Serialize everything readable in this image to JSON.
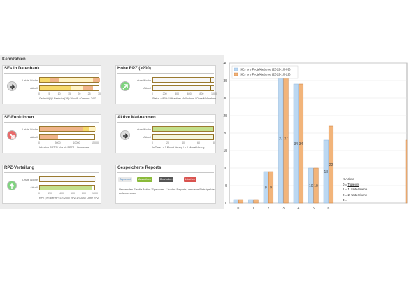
{
  "dashboard": {
    "title": "Kennzahlen",
    "row_labels": {
      "last_week": "Letzte Woche",
      "current": "Aktuell"
    },
    "panels": {
      "ses": {
        "title": "SEs in Datenbank",
        "ticks": [
          "0",
          "5",
          "10",
          "15",
          "20",
          "25",
          "30"
        ],
        "caption": "Gedacht(0) / Realisiert(18) / Neu(8) / Gesamt: 2423"
      },
      "hohe": {
        "title": "Hohe RPZ (>200)",
        "ticks": [
          "0",
          "200",
          "400",
          "600",
          "800",
          "1000"
        ],
        "caption": "Status = 80% / Mit aktiver Maßnahme / Ohne Maßnahme"
      },
      "sef": {
        "title": "SE-Funktionen",
        "ticks": [
          "0",
          "5000",
          "10000",
          "15000"
        ],
        "caption": "Inklusive RPZ 2 / Nur bis RPZ 1 / Unbewertet"
      },
      "aktive": {
        "title": "Aktive Maßnahmen",
        "ticks": [
          "0",
          "20",
          "40",
          "60",
          "80"
        ],
        "caption": "In Time / < 1 Monat Verzug / > 1 Monat Verzug"
      },
      "rpz": {
        "title": "RPZ-Verteilung",
        "ticks": [
          "0",
          "200",
          "400",
          "600",
          "800",
          "1000"
        ],
        "caption": "RPZ (>0 oder RPZ1 < 200 / RPZ 1 < 200 / Ohne RPZ"
      },
      "saved": {
        "title": "Gespeicherte Reports",
        "tags": [
          {
            "label": "Top report",
            "color": "#e8e8e8",
            "text_color": "#3a7fc2"
          },
          {
            "label": "Auswählen",
            "color": "#8aba3a",
            "text_color": "#ffffff"
          },
          {
            "label": "Bearbeiten",
            "color": "#555555",
            "text_color": "#ffffff"
          },
          {
            "label": "Löschen",
            "color": "#d9534f",
            "text_color": "#ffffff"
          }
        ],
        "text": "Verwenden Sie die Aktion 'Speichern...' in den Reports, um neue Einträge hier aufzunehmen."
      }
    }
  },
  "chart_data": {
    "type": "bar",
    "categories": [
      "0",
      "1",
      "2",
      "3",
      "4",
      "5",
      "6"
    ],
    "series": [
      {
        "name": "SEs pro Projektebene (2012-10-09)",
        "color": "#bcd8f2",
        "values": [
          1,
          1,
          9,
          37,
          34,
          10,
          18
        ]
      },
      {
        "name": "SEs pro Projektebene (2012-10-22)",
        "color": "#f2b47a",
        "values": [
          1,
          1,
          9,
          37,
          34,
          10,
          22
        ]
      }
    ],
    "data_labels": [
      [
        null,
        null,
        "9",
        "37",
        "34",
        "10",
        "18"
      ],
      [
        null,
        null,
        "9",
        "37",
        "34",
        "10",
        "22"
      ]
    ],
    "yticks": [
      "0",
      "5",
      "10",
      "15",
      "20",
      "25",
      "30",
      "35",
      "40"
    ],
    "ylim": [
      0,
      40
    ],
    "legend_position": "top-left",
    "grid": true
  },
  "notes": {
    "lines": [
      "X-Achse",
      "0 = Toplevel",
      "1 = 1. Unterebene",
      "2 = 2. Unterebene",
      "3 ..."
    ]
  },
  "colors": {
    "amber": "#f6d96a",
    "salmon": "#efb48a",
    "green_light": "#c4e08c",
    "cream": "#fff3c4"
  }
}
